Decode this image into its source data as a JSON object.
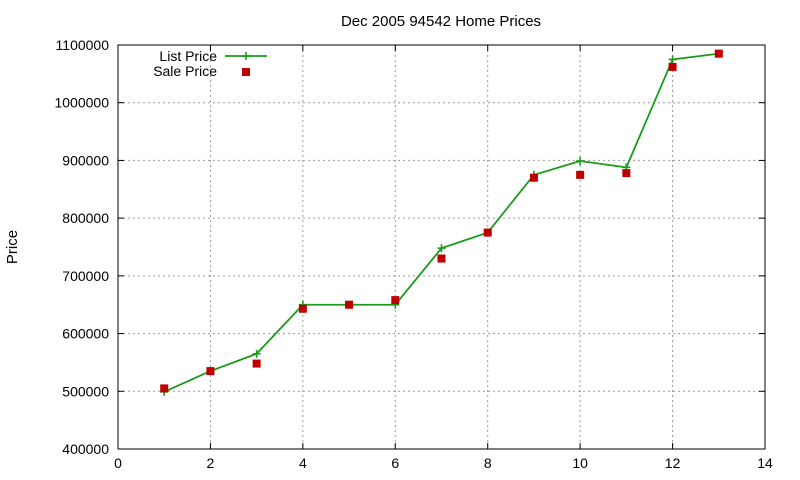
{
  "chart_data": {
    "type": "line",
    "title": "Dec 2005 94542 Home Prices",
    "xlabel": "",
    "ylabel": "Price",
    "xlim": [
      0,
      14
    ],
    "ylim": [
      400000,
      1100000
    ],
    "x_ticks": [
      0,
      2,
      4,
      6,
      8,
      10,
      12,
      14
    ],
    "y_ticks": [
      400000,
      500000,
      600000,
      700000,
      800000,
      900000,
      1000000,
      1100000
    ],
    "grid": true,
    "legend_position": "top-left",
    "series": [
      {
        "name": "List Price",
        "style": "lines+points",
        "marker": "plus",
        "color": "#1a9c1a",
        "points": [
          [
            1,
            499000
          ],
          [
            2,
            535000
          ],
          [
            3,
            565000
          ],
          [
            4,
            650000
          ],
          [
            5,
            650000
          ],
          [
            6,
            650000
          ],
          [
            7,
            748000
          ],
          [
            8,
            775000
          ],
          [
            9,
            875000
          ],
          [
            10,
            899000
          ],
          [
            11,
            888000
          ],
          [
            12,
            1075000
          ],
          [
            13,
            1085000
          ]
        ]
      },
      {
        "name": "Sale Price",
        "style": "points",
        "marker": "square",
        "color": "#c00000",
        "points": [
          [
            1,
            505000
          ],
          [
            2,
            535000
          ],
          [
            3,
            548000
          ],
          [
            4,
            643000
          ],
          [
            5,
            650000
          ],
          [
            6,
            658000
          ],
          [
            7,
            730000
          ],
          [
            8,
            775000
          ],
          [
            9,
            870000
          ],
          [
            10,
            875000
          ],
          [
            11,
            878000
          ],
          [
            12,
            1062000
          ],
          [
            13,
            1085000
          ]
        ]
      }
    ]
  }
}
